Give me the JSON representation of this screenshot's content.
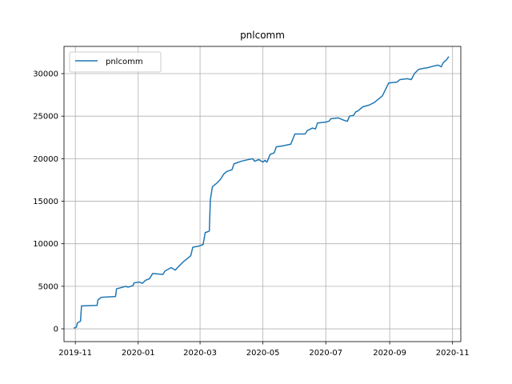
{
  "chart_data": {
    "type": "line",
    "title": "pnlcomm",
    "xlabel": "",
    "ylabel": "",
    "grid": true,
    "legend_position": "top-left",
    "line_color": "#1f77b4",
    "xlim": [
      "2019-10-21",
      "2020-11-09"
    ],
    "ylim": [
      -1500,
      33200
    ],
    "x_ticks": [
      "2019-11",
      "2020-01",
      "2020-03",
      "2020-05",
      "2020-07",
      "2020-09",
      "2020-11"
    ],
    "y_ticks": [
      "0",
      "5000",
      "10000",
      "15000",
      "20000",
      "25000",
      "30000"
    ],
    "series": [
      {
        "name": "pnlcomm",
        "points": [
          [
            "2019-10-31",
            100
          ],
          [
            "2019-11-02",
            200
          ],
          [
            "2019-11-03",
            700
          ],
          [
            "2019-11-06",
            900
          ],
          [
            "2019-11-07",
            2700
          ],
          [
            "2019-11-22",
            2750
          ],
          [
            "2019-11-23",
            3400
          ],
          [
            "2019-11-26",
            3700
          ],
          [
            "2019-12-10",
            3800
          ],
          [
            "2019-12-11",
            4700
          ],
          [
            "2019-12-20",
            5000
          ],
          [
            "2019-12-22",
            4900
          ],
          [
            "2019-12-25",
            5000
          ],
          [
            "2019-12-27",
            5100
          ],
          [
            "2019-12-28",
            5400
          ],
          [
            "2020-01-02",
            5500
          ],
          [
            "2020-01-05",
            5350
          ],
          [
            "2020-01-08",
            5700
          ],
          [
            "2020-01-12",
            5900
          ],
          [
            "2020-01-15",
            6500
          ],
          [
            "2020-01-25",
            6400
          ],
          [
            "2020-01-27",
            6800
          ],
          [
            "2020-02-02",
            7200
          ],
          [
            "2020-02-06",
            6900
          ],
          [
            "2020-02-09",
            7300
          ],
          [
            "2020-02-13",
            7800
          ],
          [
            "2020-02-18",
            8300
          ],
          [
            "2020-02-21",
            8600
          ],
          [
            "2020-02-23",
            9600
          ],
          [
            "2020-02-28",
            9700
          ],
          [
            "2020-03-04",
            9900
          ],
          [
            "2020-03-06",
            11300
          ],
          [
            "2020-03-10",
            11500
          ],
          [
            "2020-03-11",
            15200
          ],
          [
            "2020-03-13",
            16700
          ],
          [
            "2020-03-17",
            17100
          ],
          [
            "2020-03-21",
            17600
          ],
          [
            "2020-03-24",
            18200
          ],
          [
            "2020-03-27",
            18500
          ],
          [
            "2020-04-01",
            18700
          ],
          [
            "2020-04-03",
            19400
          ],
          [
            "2020-04-10",
            19700
          ],
          [
            "2020-04-17",
            19900
          ],
          [
            "2020-04-21",
            20000
          ],
          [
            "2020-04-23",
            19700
          ],
          [
            "2020-04-27",
            19900
          ],
          [
            "2020-05-01",
            19600
          ],
          [
            "2020-05-03",
            19800
          ],
          [
            "2020-05-05",
            19600
          ],
          [
            "2020-05-08",
            20500
          ],
          [
            "2020-05-12",
            20700
          ],
          [
            "2020-05-14",
            21400
          ],
          [
            "2020-05-20",
            21500
          ],
          [
            "2020-05-28",
            21700
          ],
          [
            "2020-06-01",
            22900
          ],
          [
            "2020-06-11",
            22900
          ],
          [
            "2020-06-13",
            23300
          ],
          [
            "2020-06-18",
            23600
          ],
          [
            "2020-06-21",
            23500
          ],
          [
            "2020-06-23",
            24200
          ],
          [
            "2020-07-01",
            24300
          ],
          [
            "2020-07-04",
            24400
          ],
          [
            "2020-07-06",
            24700
          ],
          [
            "2020-07-13",
            24800
          ],
          [
            "2020-07-19",
            24500
          ],
          [
            "2020-07-22",
            24400
          ],
          [
            "2020-07-24",
            25000
          ],
          [
            "2020-07-28",
            25100
          ],
          [
            "2020-07-30",
            25500
          ],
          [
            "2020-08-01",
            25600
          ],
          [
            "2020-08-06",
            26100
          ],
          [
            "2020-08-12",
            26300
          ],
          [
            "2020-08-17",
            26600
          ],
          [
            "2020-08-21",
            27000
          ],
          [
            "2020-08-25",
            27400
          ],
          [
            "2020-08-31",
            28900
          ],
          [
            "2020-09-08",
            29000
          ],
          [
            "2020-09-11",
            29300
          ],
          [
            "2020-09-18",
            29400
          ],
          [
            "2020-09-22",
            29300
          ],
          [
            "2020-09-25",
            30000
          ],
          [
            "2020-09-29",
            30500
          ],
          [
            "2020-10-03",
            30600
          ],
          [
            "2020-10-08",
            30700
          ],
          [
            "2020-10-14",
            30900
          ],
          [
            "2020-10-18",
            31000
          ],
          [
            "2020-10-21",
            30800
          ],
          [
            "2020-10-23",
            31300
          ],
          [
            "2020-10-26",
            31600
          ],
          [
            "2020-10-28",
            31950
          ]
        ]
      }
    ]
  }
}
